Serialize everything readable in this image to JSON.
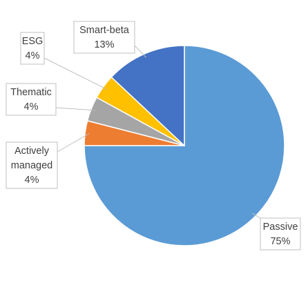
{
  "chart_data": {
    "type": "pie",
    "title": "",
    "slices": [
      {
        "name": "Passive",
        "value": 75,
        "label_value": "75%",
        "color": "#5B9BD5"
      },
      {
        "name": "Actively managed",
        "value": 4,
        "label_value": "4%",
        "color": "#ED7D31"
      },
      {
        "name": "Thematic",
        "value": 4,
        "label_value": "4%",
        "color": "#A5A5A5"
      },
      {
        "name": "ESG",
        "value": 4,
        "label_value": "4%",
        "color": "#FFC000"
      },
      {
        "name": "Smart-beta",
        "value": 13,
        "label_value": "13%",
        "color": "#4472C4"
      }
    ],
    "legend": "none",
    "data_labels": "callouts"
  }
}
